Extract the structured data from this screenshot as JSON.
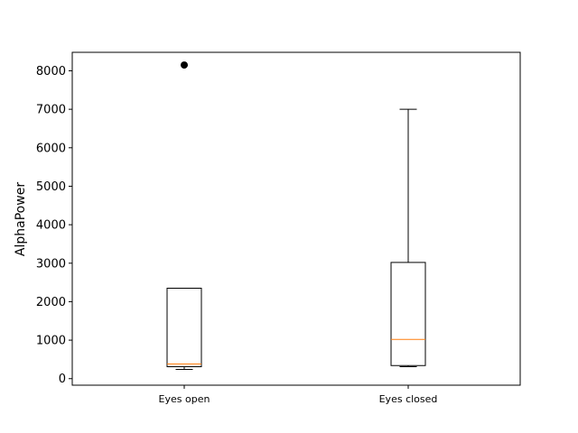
{
  "chart_data": {
    "type": "box",
    "title": "",
    "xlabel": "",
    "ylabel": "AlphaPower",
    "ylim": [
      -170,
      8480
    ],
    "yticks": [
      0,
      1000,
      2000,
      3000,
      4000,
      5000,
      6000,
      7000,
      8000
    ],
    "grid": false,
    "categories": [
      "Eyes open",
      "Eyes closed"
    ],
    "boxes": [
      {
        "category": "Eyes open",
        "whisker_low": 240,
        "q1": 310,
        "median": 380,
        "q3": 2350,
        "whisker_high": 2350,
        "outliers": [
          8150
        ]
      },
      {
        "category": "Eyes closed",
        "whisker_low": 310,
        "q1": 340,
        "median": 1020,
        "q3": 3020,
        "whisker_high": 7000,
        "outliers": []
      }
    ],
    "colors": {
      "box": "#000000",
      "median": "#ff7f0e",
      "outlier": "#000000"
    }
  }
}
